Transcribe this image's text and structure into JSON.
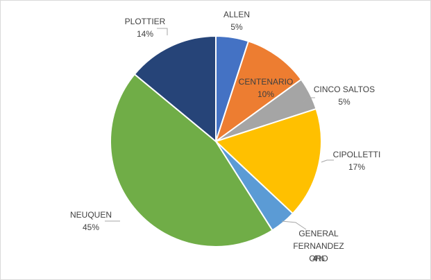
{
  "chart_data": {
    "type": "pie",
    "categories": [
      "ALLEN",
      "CENTENARIO",
      "CINCO SALTOS",
      "CIPOLLETTI",
      "GENERAL FERNANDEZ ORO",
      "NEUQUEN",
      "PLOTTIER"
    ],
    "values": [
      5,
      10,
      5,
      17,
      4,
      45,
      14
    ],
    "value_labels": [
      "5%",
      "10%",
      "5%",
      "17%",
      "4%",
      "45%",
      "14%"
    ],
    "colors": [
      "#4472c4",
      "#ed7d31",
      "#a5a5a5",
      "#ffc000",
      "#5b9bd5",
      "#70ad47",
      "#264478"
    ]
  }
}
